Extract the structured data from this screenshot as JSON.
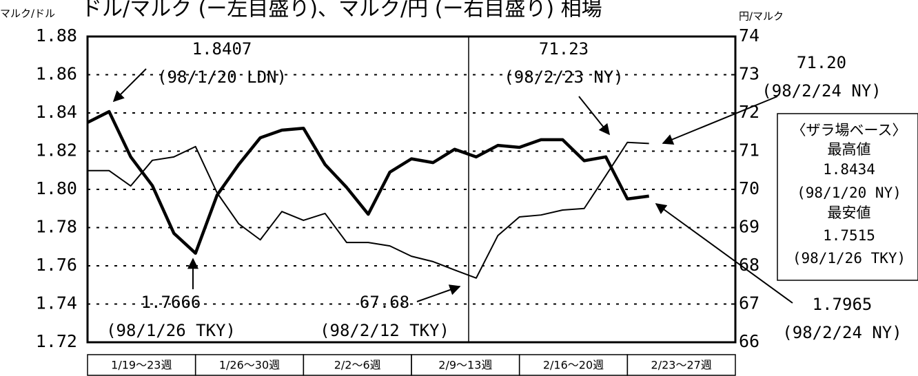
{
  "chart_data": {
    "type": "line",
    "title": "ドル/マルク (ー左目盛り)、マルク/円 (ー右目盛り) 相場",
    "y_label": "マルク/ドル",
    "y2_label": "円/マルク",
    "categories": [
      null,
      null,
      null,
      null,
      null,
      null,
      null,
      null,
      null,
      null,
      null,
      null,
      null,
      null,
      null,
      null,
      null,
      null,
      null,
      null,
      null,
      null,
      null,
      null,
      null,
      null,
      null
    ],
    "week_labels": [
      "1/19〜23週",
      "1/26〜30週",
      "2/2〜6週",
      "2/9〜13週",
      "2/16〜20週",
      "2/23〜27週"
    ],
    "series": [
      {
        "name": "ドル/マルク",
        "color": "#000000",
        "axis": "y",
        "values": [
          1.835,
          1.8407,
          1.817,
          1.802,
          1.777,
          1.7666,
          1.797,
          1.813,
          1.827,
          1.831,
          1.832,
          1.813,
          1.801,
          1.787,
          1.809,
          1.816,
          1.814,
          1.821,
          1.817,
          1.823,
          1.822,
          1.826,
          1.826,
          1.815,
          1.817,
          1.795,
          1.7965
        ]
      },
      {
        "name": "マルク/円",
        "color": "#000000",
        "axis": "y2",
        "values": [
          70.49,
          70.49,
          70.09,
          70.76,
          70.85,
          71.12,
          69.91,
          69.1,
          68.68,
          69.42,
          69.19,
          69.37,
          68.61,
          68.61,
          68.52,
          68.25,
          68.11,
          67.89,
          67.68,
          68.79,
          69.28,
          69.33,
          69.46,
          69.5,
          70.36,
          71.23,
          71.2
        ]
      }
    ],
    "ylim": [
      1.72,
      1.88
    ],
    "yticks": [
      1.72,
      1.74,
      1.76,
      1.78,
      {
        "value": 1.8,
        "label": "1.80"
      },
      1.82,
      1.84,
      1.86,
      1.88
    ],
    "y2lim": [
      66,
      74
    ],
    "y2ticks": [
      66,
      67,
      68,
      69,
      70,
      71,
      72,
      73,
      74
    ],
    "grid": true,
    "annotations": [
      {
        "lines": [
          "1.8407",
          "(98/1/20 LDN)"
        ]
      },
      {
        "lines": [
          "71.23",
          "(98/2/23 NY)"
        ]
      },
      {
        "lines": [
          "71.20",
          "(98/2/24 NY)"
        ]
      },
      {
        "lines": [
          "1.7666",
          "(98/1/26 TKY)"
        ]
      },
      {
        "lines": [
          "67.68",
          "(98/2/12 TKY)"
        ]
      },
      {
        "lines": [
          "1.7965",
          "(98/2/24 NY)"
        ]
      }
    ],
    "info_box": [
      "〈ザラ場ベース〉",
      "最高値",
      "1.8434",
      "(98/1/20 NY)",
      "最安値",
      "1.7515",
      "(98/1/26 TKY)"
    ]
  }
}
